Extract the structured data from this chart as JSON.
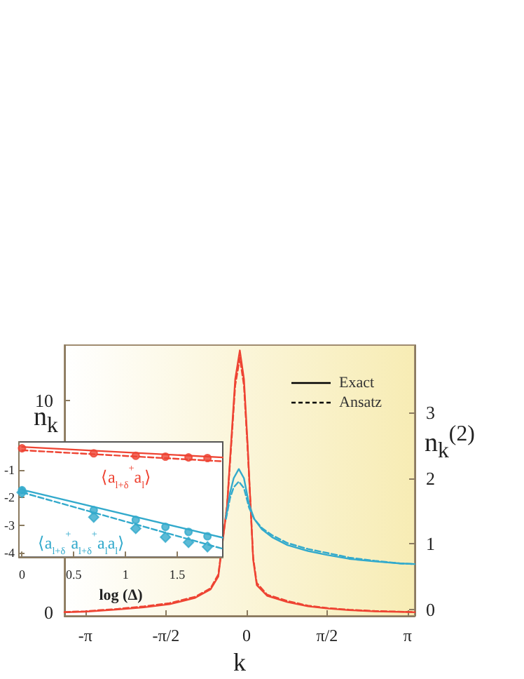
{
  "chart_data": [
    {
      "type": "line",
      "xlabel": "k",
      "ylabel": "n$_{k}$",
      "y2label": "n$_{k}$$^{(2)}$",
      "marker": "none",
      "annotations": [
        "Exact",
        "Ansatz"
      ],
      "xlim": [
        -3.55,
        3.28
      ],
      "xticks": [
        {
          "value": -3.1416,
          "label": "-π"
        },
        {
          "value": -1.5708,
          "label": "-π/2"
        },
        0,
        {
          "value": 1.5708,
          "label": "π/2"
        },
        {
          "value": 3.1416,
          "label": "π"
        }
      ],
      "ylim": [
        -0.15,
        12.6
      ],
      "yticks": [
        0,
        10
      ],
      "y2lim": [
        -0.1,
        4.03
      ],
      "y2ticks": [
        0,
        1,
        2,
        3
      ],
      "series": [
        {
          "color": "#ee4433",
          "line_style": "solid",
          "x": [
            -3.55,
            -3.14,
            -2.5,
            -2.0,
            -1.5,
            -1.0,
            -0.7,
            -0.55,
            -0.38,
            -0.3,
            -0.22,
            -0.13,
            -0.05,
            0.02,
            0.08,
            0.13,
            0.2,
            0.4,
            0.8,
            1.2,
            1.57,
            2.0,
            2.5,
            3.14,
            3.28
          ],
          "values": [
            0.02,
            0.05,
            0.15,
            0.25,
            0.4,
            0.7,
            1.1,
            1.7,
            5,
            8,
            11,
            12.35,
            11,
            8,
            5,
            2.5,
            1.3,
            0.8,
            0.5,
            0.3,
            0.2,
            0.12,
            0.06,
            0.03,
            0.02
          ]
        },
        {
          "color": "#ee4433",
          "line_style": "dashed",
          "x": [
            -3.55,
            -3.14,
            -2.5,
            -2.0,
            -1.5,
            -1.0,
            -0.7,
            -0.55,
            -0.38,
            -0.3,
            -0.22,
            -0.13,
            -0.05,
            0.02,
            0.08,
            0.13,
            0.2,
            0.4,
            0.8,
            1.2,
            1.57,
            2.0,
            2.5,
            3.14,
            3.28
          ],
          "values": [
            0.03,
            0.07,
            0.18,
            0.3,
            0.45,
            0.75,
            1.15,
            1.8,
            5,
            7.8,
            10.7,
            12.0,
            10.7,
            7.8,
            5,
            2.6,
            1.4,
            0.85,
            0.55,
            0.33,
            0.22,
            0.14,
            0.08,
            0.04,
            0.03
          ]
        },
        {
          "color": "#33aacc",
          "line_style": "solid",
          "axis": "y2",
          "x": [
            -0.4,
            -0.32,
            -0.25,
            -0.15,
            -0.05,
            0.05,
            0.15,
            0.3,
            0.5,
            0.8,
            1.2,
            1.57,
            2.0,
            2.5,
            3.0,
            3.28
          ],
          "values": [
            1.4,
            1.78,
            2.0,
            2.14,
            2.0,
            1.6,
            1.38,
            1.22,
            1.1,
            0.98,
            0.89,
            0.83,
            0.77,
            0.73,
            0.7,
            0.69
          ]
        },
        {
          "color": "#33aacc",
          "line_style": "dashed",
          "axis": "y2",
          "x": [
            -0.4,
            -0.32,
            -0.25,
            -0.15,
            -0.05,
            0.05,
            0.15,
            0.3,
            0.5,
            0.8,
            1.2,
            1.57,
            2.0,
            2.5,
            3.0,
            3.28
          ],
          "values": [
            1.38,
            1.7,
            1.86,
            1.95,
            1.85,
            1.55,
            1.38,
            1.24,
            1.13,
            1.01,
            0.92,
            0.86,
            0.79,
            0.74,
            0.7,
            0.69
          ]
        }
      ]
    },
    {
      "type": "scatter",
      "xlabel": "log (Δ)",
      "xlim": [
        -0.03,
        1.94
      ],
      "xticks": [
        0,
        0.5,
        1,
        1.5
      ],
      "ylim": [
        -4.15,
        0
      ],
      "yticks": [
        -1,
        -2,
        -3,
        -4
      ],
      "annotations": [
        "⟨a$_{l+δ}$$^{+}$a$_{l}$⟩",
        "⟨a$_{l+δ}$$^{+}$a$_{l+δ}$$^{+}$a$_{l}$a$_{l}$⟩"
      ],
      "series": [
        {
          "type": "line",
          "color": "#ee4433",
          "line_style": "solid",
          "marker": "none",
          "x": [
            0,
            1.94
          ],
          "values": [
            -0.18,
            -0.56
          ]
        },
        {
          "type": "line",
          "color": "#ee4433",
          "line_style": "dashed",
          "marker": "none",
          "x": [
            0,
            1.94
          ],
          "values": [
            -0.3,
            -0.7
          ]
        },
        {
          "color": "#ee4433",
          "marker": "circle",
          "x": [
            0,
            0.693,
            1.099,
            1.386,
            1.609,
            1.792
          ],
          "values": [
            -0.23,
            -0.41,
            -0.5,
            -0.53,
            -0.56,
            -0.58
          ]
        },
        {
          "type": "line",
          "color": "#33aacc",
          "line_style": "solid",
          "marker": "none",
          "x": [
            0,
            1.94
          ],
          "values": [
            -1.72,
            -3.45
          ]
        },
        {
          "type": "line",
          "color": "#33aacc",
          "line_style": "dashed",
          "marker": "none",
          "x": [
            0,
            1.94
          ],
          "values": [
            -1.82,
            -3.85
          ]
        },
        {
          "color": "#33aacc",
          "marker": "circle",
          "x": [
            0,
            0.693,
            1.099,
            1.386,
            1.609,
            1.792
          ],
          "values": [
            -1.74,
            -2.46,
            -2.81,
            -3.06,
            -3.24,
            -3.4
          ]
        },
        {
          "color": "#33aacc",
          "marker": "diamond",
          "x": [
            0,
            0.693,
            1.099,
            1.386,
            1.609,
            1.792
          ],
          "values": [
            -1.82,
            -2.71,
            -3.12,
            -3.43,
            -3.62,
            -3.78
          ]
        }
      ]
    }
  ]
}
